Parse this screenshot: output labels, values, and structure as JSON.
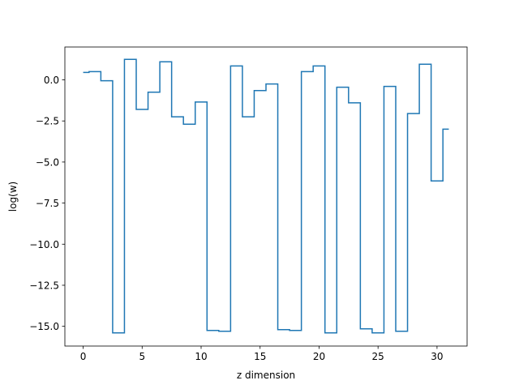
{
  "chart_data": {
    "type": "line",
    "drawstyle": "steps-mid",
    "title": "",
    "xlabel": "z dimension",
    "ylabel": "log(w)",
    "xlim": [
      -1.55,
      32.55
    ],
    "ylim": [
      -16.2,
      2.0
    ],
    "xticks": [
      0,
      5,
      10,
      15,
      20,
      25,
      30
    ],
    "xtick_labels": [
      "0",
      "5",
      "10",
      "15",
      "20",
      "25",
      "30"
    ],
    "yticks": [
      0.0,
      -2.5,
      -5.0,
      -7.5,
      -10.0,
      -12.5,
      -15.0
    ],
    "ytick_labels": [
      "0.0",
      "−2.5",
      "−5.0",
      "−7.5",
      "−10.0",
      "−12.5",
      "−15.0"
    ],
    "grid": false,
    "legend": false,
    "series": [
      {
        "color": "#1f77b4",
        "x": [
          0,
          1,
          2,
          3,
          4,
          5,
          6,
          7,
          8,
          9,
          10,
          11,
          12,
          13,
          14,
          15,
          16,
          17,
          18,
          19,
          20,
          21,
          22,
          23,
          24,
          25,
          26,
          27,
          28,
          29,
          30,
          31
        ],
        "y": [
          0.45,
          0.5,
          -0.05,
          -15.4,
          1.25,
          -1.8,
          -0.75,
          1.1,
          -2.25,
          -2.7,
          -1.35,
          -15.25,
          -15.3,
          0.85,
          -2.25,
          -0.65,
          -0.25,
          -15.2,
          -15.25,
          0.5,
          0.85,
          -15.4,
          -0.45,
          -1.4,
          -15.15,
          -15.4,
          -0.4,
          -15.3,
          -2.05,
          0.95,
          -6.15,
          -3.0
        ]
      }
    ]
  }
}
